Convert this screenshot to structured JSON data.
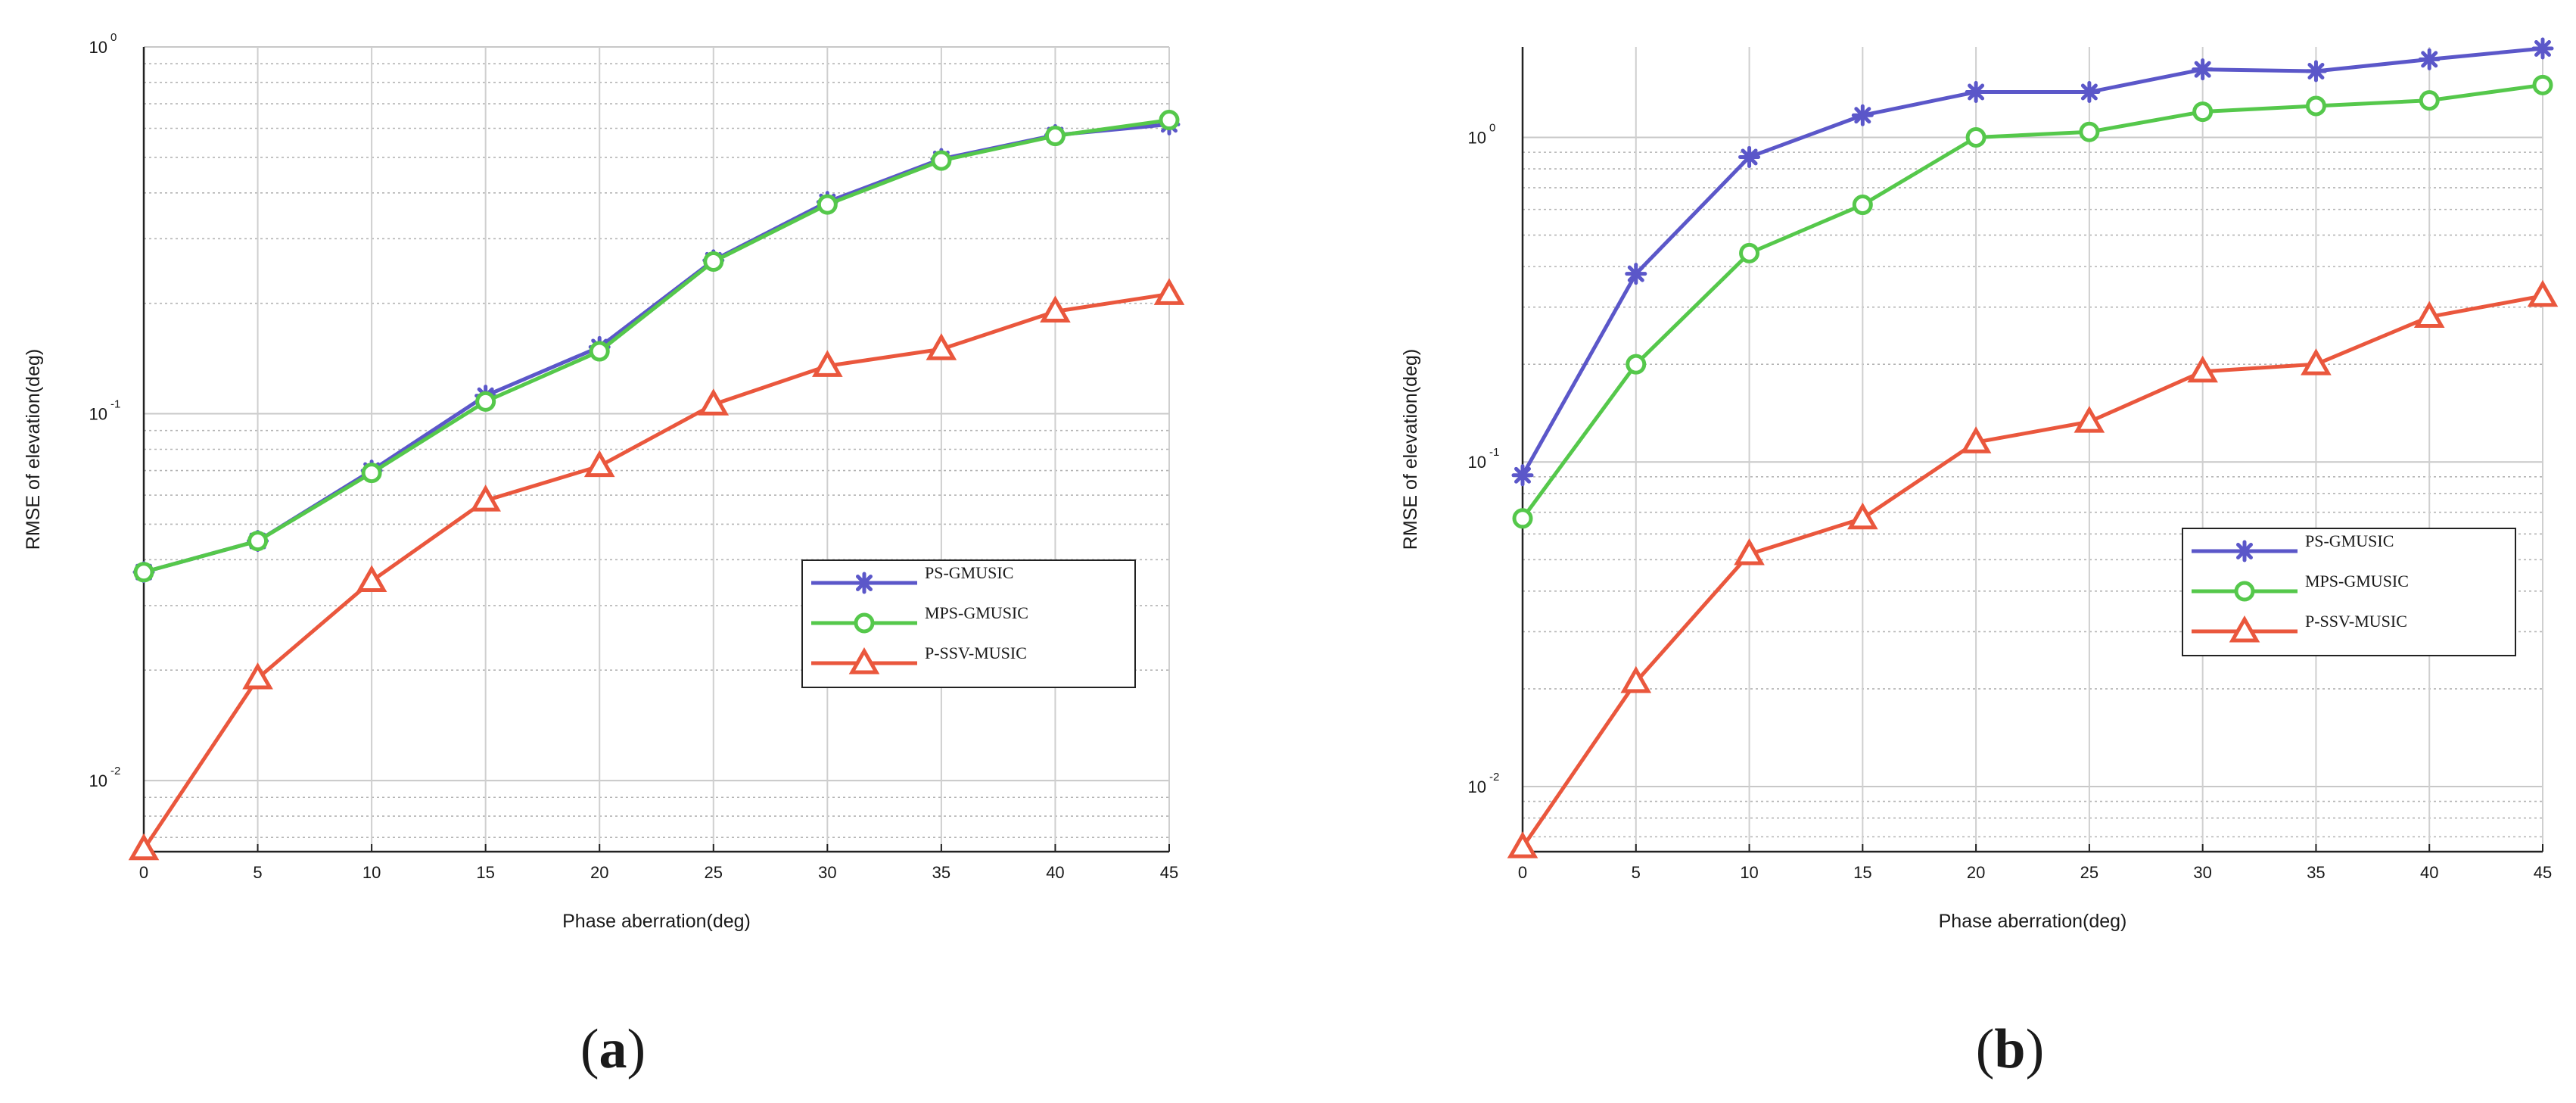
{
  "colors": {
    "ps_gmusic": "#5b57c9",
    "mps_gmusic": "#55c84b",
    "p_ssv_music": "#ea573d",
    "grid": "#cfcfcf"
  },
  "chart_data": [
    {
      "type": "line",
      "panel_label_open": "(",
      "panel_label_letter": "a",
      "panel_label_close": ")",
      "xlabel": "Phase aberration(deg)",
      "ylabel": "RMSE of elevation(deg)",
      "yscale": "log",
      "xlim": [
        0,
        45
      ],
      "ylim": [
        0.0064,
        1.0
      ],
      "x": [
        0,
        5,
        10,
        15,
        20,
        25,
        30,
        35,
        40,
        45
      ],
      "x_ticks": [
        "0",
        "5",
        "10",
        "15",
        "20",
        "25",
        "30",
        "35",
        "40",
        "45"
      ],
      "y_ticks": [
        {
          "value": 1.0,
          "base": "10",
          "exp": "0"
        },
        {
          "value": 0.1,
          "base": "10",
          "exp": "-1"
        },
        {
          "value": 0.01,
          "base": "10",
          "exp": "-2"
        }
      ],
      "grid": true,
      "legend_position": "center-right",
      "series": [
        {
          "name": "PS-GMUSIC",
          "marker": "star",
          "color": "#5b57c9",
          "values": [
            0.037,
            0.045,
            0.07,
            0.112,
            0.152,
            0.262,
            0.378,
            0.495,
            0.575,
            0.615
          ]
        },
        {
          "name": "MPS-GMUSIC",
          "marker": "circle",
          "color": "#55c84b",
          "values": [
            0.037,
            0.045,
            0.069,
            0.108,
            0.148,
            0.26,
            0.372,
            0.49,
            0.572,
            0.632
          ]
        },
        {
          "name": "P-SSV-MUSIC",
          "marker": "triangle",
          "color": "#ea573d",
          "values": [
            0.0065,
            0.019,
            0.035,
            0.058,
            0.072,
            0.106,
            0.135,
            0.15,
            0.19,
            0.212
          ]
        }
      ]
    },
    {
      "type": "line",
      "panel_label_open": "(",
      "panel_label_letter": "b",
      "panel_label_close": ")",
      "xlabel": "Phase aberration(deg)",
      "ylabel": "RMSE of elevation(deg)",
      "yscale": "log",
      "xlim": [
        0,
        45
      ],
      "ylim": [
        0.0063,
        1.9
      ],
      "x": [
        0,
        5,
        10,
        15,
        20,
        25,
        30,
        35,
        40,
        45
      ],
      "x_ticks": [
        "0",
        "5",
        "10",
        "15",
        "20",
        "25",
        "30",
        "35",
        "40",
        "45"
      ],
      "y_ticks": [
        {
          "value": 1.0,
          "base": "10",
          "exp": "0"
        },
        {
          "value": 0.1,
          "base": "10",
          "exp": "-1"
        },
        {
          "value": 0.01,
          "base": "10",
          "exp": "-2"
        }
      ],
      "grid": true,
      "legend_position": "center-right",
      "series": [
        {
          "name": "PS-GMUSIC",
          "marker": "star",
          "color": "#5b57c9",
          "values": [
            0.091,
            0.38,
            0.87,
            1.17,
            1.38,
            1.38,
            1.62,
            1.6,
            1.74,
            1.88
          ]
        },
        {
          "name": "MPS-GMUSIC",
          "marker": "circle",
          "color": "#55c84b",
          "values": [
            0.067,
            0.2,
            0.44,
            0.62,
            1.0,
            1.04,
            1.2,
            1.25,
            1.3,
            1.45
          ]
        },
        {
          "name": "P-SSV-MUSIC",
          "marker": "triangle",
          "color": "#ea573d",
          "values": [
            0.0065,
            0.021,
            0.052,
            0.067,
            0.115,
            0.133,
            0.19,
            0.2,
            0.28,
            0.325
          ]
        }
      ]
    }
  ]
}
